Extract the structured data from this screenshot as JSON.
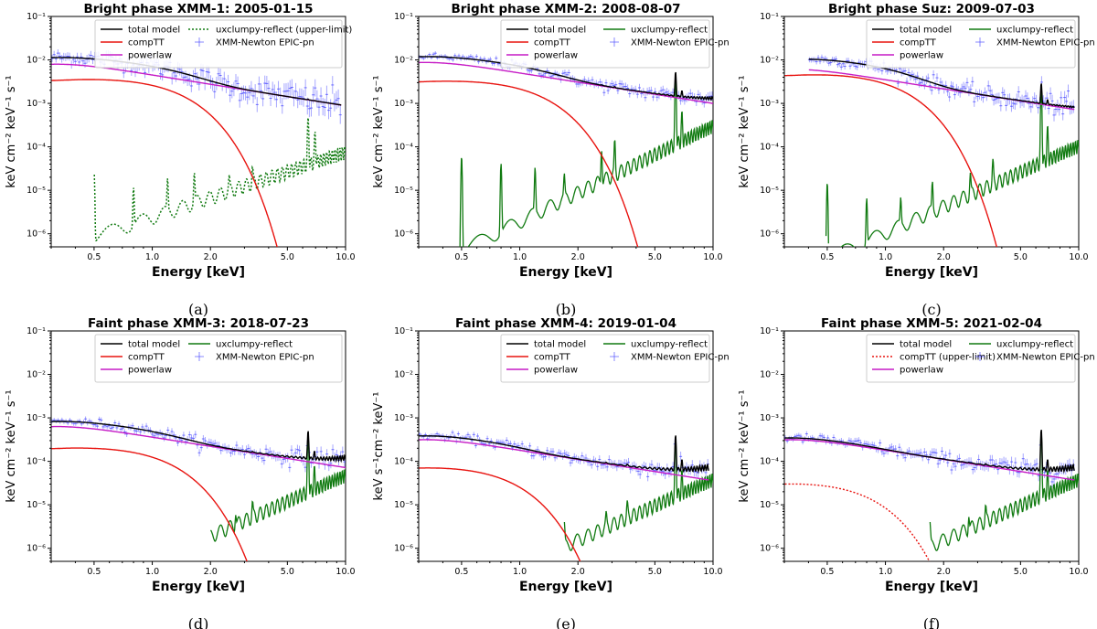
{
  "chart_data": [
    {
      "type": "line",
      "xscale": "log",
      "yscale": "log",
      "xlim": [
        0.3,
        10
      ],
      "ylim": [
        5e-07,
        0.1
      ],
      "title": "Bright phase XMM-1: 2005-01-15",
      "xlabel": "Energy [keV]",
      "ylabel": "keV cm⁻² keV⁻¹ s⁻¹",
      "x_ticks": [
        "0.5",
        "1.0",
        "2.0",
        "5.0",
        "10.0"
      ],
      "y_ticks": [
        "10⁻⁶",
        "10⁻⁵",
        "10⁻⁴",
        "10⁻³",
        "10⁻²",
        "10⁻¹"
      ],
      "legend": [
        "total model",
        "compTT",
        "powerlaw",
        "uxclumpy-reflect (upper-limit)",
        "XMM-Newton EPIC-pn"
      ],
      "legend_placement": "top-right",
      "caption": "(a)",
      "data_range": [
        0.3,
        9.5
      ],
      "compTT": {
        "norm": 0.0035,
        "peak": 0.4,
        "decay": 1.45,
        "dashed": false
      },
      "powerlaw": {
        "norm": 0.0045,
        "index": 0.71
      },
      "reflect": {
        "norm": 2.5e-06,
        "index": 1.5,
        "low_cut": 0.5,
        "lines": [
          [
            0.5,
            2.7e-05
          ],
          [
            0.8,
            1e-05
          ],
          [
            1.2,
            1.5e-05
          ],
          [
            1.65,
            2e-05
          ],
          [
            2.5,
            1e-05
          ],
          [
            3.3,
            1.8e-05
          ],
          [
            6.4,
            0.00045
          ],
          [
            6.95,
            0.00018
          ]
        ],
        "dotted": true
      },
      "data_scatter": 0.14
    },
    {
      "type": "line",
      "xscale": "log",
      "yscale": "log",
      "xlim": [
        0.3,
        10
      ],
      "ylim": [
        5e-07,
        0.1
      ],
      "title": "Bright phase XMM-2: 2008-08-07",
      "xlabel": "Energy [keV]",
      "ylabel": "keV cm⁻² keV⁻¹ s⁻¹",
      "x_ticks": [
        "0.5",
        "1.0",
        "2.0",
        "5.0",
        "10.0"
      ],
      "y_ticks": [
        "10⁻⁶",
        "10⁻⁵",
        "10⁻⁴",
        "10⁻³",
        "10⁻²",
        "10⁻¹"
      ],
      "legend": [
        "total model",
        "compTT",
        "powerlaw",
        "uxclumpy-reflect",
        "XMM-Newton EPIC-pn"
      ],
      "legend_placement": "top-right",
      "caption": "(b)",
      "data_range": [
        0.3,
        10
      ],
      "compTT": {
        "norm": 0.0032,
        "peak": 0.35,
        "decay": 1.35,
        "dashed": false
      },
      "powerlaw": {
        "norm": 0.005,
        "index": 0.7
      },
      "reflect": {
        "norm": 2e-06,
        "index": 2.2,
        "low_cut": 0.42,
        "lines": [
          [
            0.5,
            6e-05
          ],
          [
            0.8,
            4e-05
          ],
          [
            1.2,
            3e-05
          ],
          [
            1.7,
            1.6e-05
          ],
          [
            2.65,
            7e-05
          ],
          [
            3.1,
            0.00012
          ],
          [
            6.4,
            0.004
          ],
          [
            6.9,
            0.0005
          ]
        ],
        "dotted": false
      },
      "data_scatter": 0.07
    },
    {
      "type": "line",
      "xscale": "log",
      "yscale": "log",
      "xlim": [
        0.3,
        10
      ],
      "ylim": [
        5e-07,
        0.1
      ],
      "title": "Bright phase Suz: 2009-07-03",
      "xlabel": "Energy [keV]",
      "ylabel": "keV cm⁻² keV⁻¹ s⁻¹",
      "x_ticks": [
        "0.5",
        "1.0",
        "2.0",
        "5.0",
        "10.0"
      ],
      "y_ticks": [
        "10⁻⁶",
        "10⁻⁵",
        "10⁻⁴",
        "10⁻³",
        "10⁻²",
        "10⁻¹"
      ],
      "legend": [
        "total model",
        "compTT",
        "powerlaw",
        "uxclumpy-reflect",
        "XMM-Newton EPIC-pn"
      ],
      "legend_placement": "top-right",
      "caption": "(c)",
      "data_range": [
        0.4,
        9.5
      ],
      "compTT": {
        "norm": 0.0045,
        "peak": 0.38,
        "decay": 1.2,
        "dashed": false
      },
      "powerlaw": {
        "norm": 0.0035,
        "index": 0.7
      },
      "reflect": {
        "norm": 1.1e-06,
        "index": 2.0,
        "low_cut": 0.4,
        "lines": [
          [
            0.5,
            1.5e-05
          ],
          [
            0.8,
            6e-06
          ],
          [
            1.2,
            5e-06
          ],
          [
            1.75,
            1.2e-05
          ],
          [
            2.75,
            1.6e-05
          ],
          [
            3.6,
            3.5e-05
          ],
          [
            6.4,
            0.002
          ],
          [
            6.9,
            0.00025
          ]
        ],
        "dotted": false
      },
      "data_scatter": 0.1
    },
    {
      "type": "line",
      "xscale": "log",
      "yscale": "log",
      "xlim": [
        0.3,
        10
      ],
      "ylim": [
        5e-07,
        0.1
      ],
      "title": "Faint phase XMM-3: 2018-07-23",
      "xlabel": "Energy [keV]",
      "ylabel": "keV cm⁻² keV⁻¹ s⁻¹",
      "x_ticks": [
        "0.5",
        "1.0",
        "2.0",
        "5.0",
        "10.0"
      ],
      "y_ticks": [
        "10⁻⁶",
        "10⁻⁵",
        "10⁻⁴",
        "10⁻³",
        "10⁻²",
        "10⁻¹"
      ],
      "legend": [
        "total model",
        "compTT",
        "powerlaw",
        "uxclumpy-reflect",
        "XMM-Newton EPIC-pn"
      ],
      "legend_placement": "top-right",
      "caption": "(d)",
      "data_range": [
        0.3,
        10
      ],
      "compTT": {
        "norm": 0.0002,
        "peak": 0.35,
        "decay": 1.25,
        "dashed": false
      },
      "powerlaw": {
        "norm": 0.00036,
        "index": 0.7
      },
      "reflect": {
        "norm": 5e-07,
        "index": 2.0,
        "low_cut": 2.0,
        "lines": [
          [
            0.5,
            3e-06
          ],
          [
            0.8,
            1.8e-06
          ],
          [
            1.2,
            2.5e-06
          ],
          [
            1.65,
            2.8e-06
          ],
          [
            2.7,
            3e-06
          ],
          [
            3.3,
            6e-06
          ],
          [
            6.4,
            0.0004
          ],
          [
            6.9,
            5e-05
          ]
        ],
        "dotted": false
      },
      "data_scatter": 0.08
    },
    {
      "type": "line",
      "xscale": "log",
      "yscale": "log",
      "xlim": [
        0.3,
        10
      ],
      "ylim": [
        5e-07,
        0.1
      ],
      "title": "Faint phase XMM-4: 2019-01-04",
      "xlabel": "Energy [keV]",
      "ylabel": "keV s⁻¹cm⁻² keV⁻¹",
      "x_ticks": [
        "0.5",
        "1.0",
        "2.0",
        "5.0",
        "10.0"
      ],
      "y_ticks": [
        "10⁻⁶",
        "10⁻⁵",
        "10⁻⁴",
        "10⁻³",
        "10⁻²",
        "10⁻¹"
      ],
      "legend": [
        "total model",
        "compTT",
        "powerlaw",
        "uxclumpy-reflect",
        "XMM-Newton EPIC-pn"
      ],
      "legend_placement": "top-right",
      "caption": "(e)",
      "data_range": [
        0.3,
        9.5
      ],
      "compTT": {
        "norm": 7e-05,
        "peak": 0.3,
        "decay": 0.9,
        "dashed": false
      },
      "powerlaw": {
        "norm": 0.00018,
        "index": 0.7
      },
      "reflect": {
        "norm": 4e-07,
        "index": 2.0,
        "low_cut": 1.7,
        "lines": [
          [
            0.5,
            6e-06
          ],
          [
            0.8,
            5e-06
          ],
          [
            1.2,
            4e-06
          ],
          [
            1.7,
            2.5e-06
          ],
          [
            2.8,
            3e-06
          ],
          [
            3.6,
            6e-06
          ],
          [
            6.4,
            0.00035
          ],
          [
            6.9,
            4e-05
          ]
        ],
        "dotted": false
      },
      "data_scatter": 0.08
    },
    {
      "type": "line",
      "xscale": "log",
      "yscale": "log",
      "xlim": [
        0.3,
        10
      ],
      "ylim": [
        5e-07,
        0.1
      ],
      "title": "Faint phase XMM-5: 2021-02-04",
      "xlabel": "Energy [keV]",
      "ylabel": "keV cm⁻² keV⁻¹ s⁻¹",
      "x_ticks": [
        "0.5",
        "1.0",
        "2.0",
        "5.0",
        "10.0"
      ],
      "y_ticks": [
        "10⁻⁶",
        "10⁻⁵",
        "10⁻⁴",
        "10⁻³",
        "10⁻²",
        "10⁻¹"
      ],
      "legend": [
        "total model",
        "compTT (upper-limit)",
        "powerlaw",
        "uxclumpy-reflect",
        "XMM-Newton EPIC-pn"
      ],
      "legend_placement": "top-right",
      "caption": "(f)",
      "data_range": [
        0.3,
        9.5
      ],
      "compTT": {
        "norm": 3e-05,
        "peak": 0.3,
        "decay": 0.8,
        "dashed": true
      },
      "powerlaw": {
        "norm": 0.00018,
        "index": 0.7
      },
      "reflect": {
        "norm": 4e-07,
        "index": 2.0,
        "low_cut": 1.7,
        "lines": [
          [
            0.5,
            6e-06
          ],
          [
            0.8,
            4e-06
          ],
          [
            1.2,
            3e-06
          ],
          [
            1.7,
            2.5e-06
          ],
          [
            2.7,
            3e-06
          ],
          [
            3.3,
            5e-06
          ],
          [
            6.4,
            0.0005
          ],
          [
            6.9,
            4e-05
          ]
        ],
        "dotted": false
      },
      "data_scatter": 0.09
    }
  ],
  "colors": {
    "total": "#000000",
    "comptt": "#e8130f",
    "powerlaw": "#c61cc6",
    "reflect": "#107a10",
    "data": "#3b3bff"
  }
}
